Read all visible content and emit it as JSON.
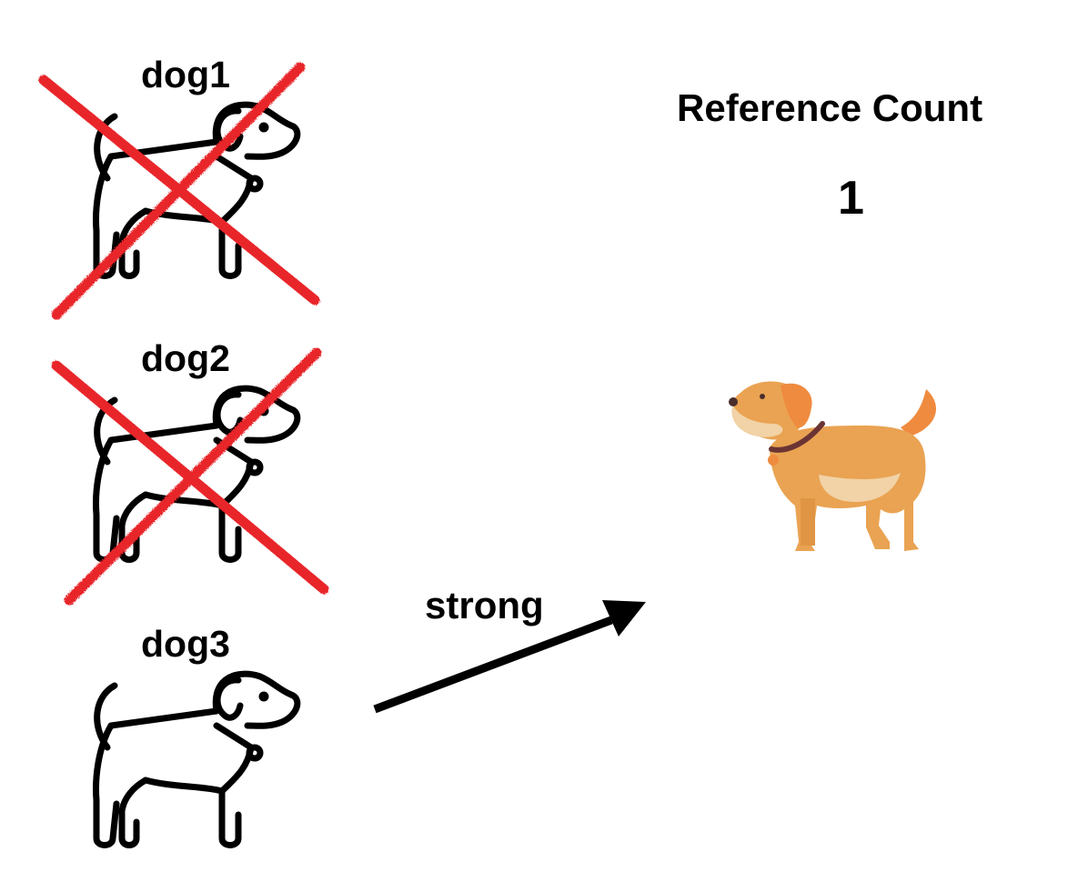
{
  "dogs": [
    {
      "label": "dog1",
      "crossed_out": true
    },
    {
      "label": "dog2",
      "crossed_out": true
    },
    {
      "label": "dog3",
      "crossed_out": false
    }
  ],
  "reference_count": {
    "title": "Reference Count",
    "value": "1"
  },
  "arrow": {
    "label": "strong",
    "from": "dog3",
    "to": "shared-dog"
  },
  "colors": {
    "cross": "#e8262a",
    "outline": "#000000",
    "dog_body": "#e9a352",
    "dog_ear": "#ef8b3f",
    "dog_belly": "#f2d2a7",
    "collar": "#6b3434",
    "tag": "#ef8b3f"
  }
}
